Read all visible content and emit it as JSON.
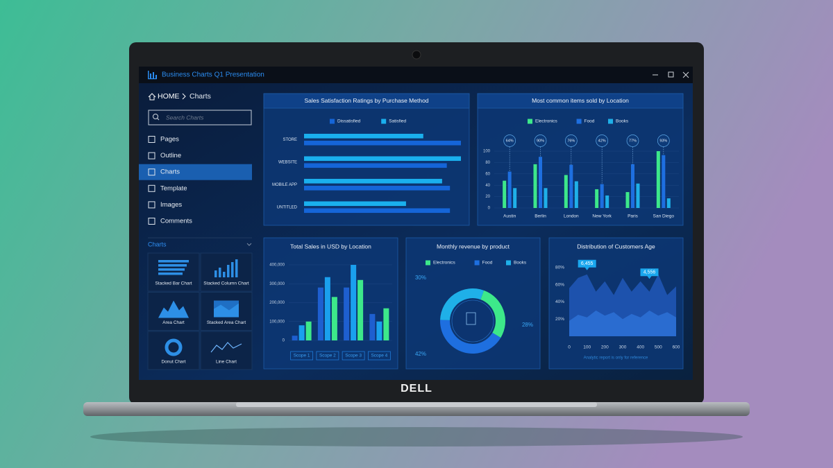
{
  "window": {
    "title": "Business Charts Q1 Presentation"
  },
  "breadcrumb": {
    "home": "HOME",
    "current": "Charts"
  },
  "search": {
    "placeholder": "Search Charts"
  },
  "nav": [
    {
      "label": "Pages"
    },
    {
      "label": "Outline"
    },
    {
      "label": "Charts",
      "active": true
    },
    {
      "label": "Template"
    },
    {
      "label": "Images"
    },
    {
      "label": "Comments"
    }
  ],
  "section": {
    "title": "Charts",
    "items": [
      "Stacked Bar Chart",
      "Stacked Column Chart",
      "Area Chart",
      "Stacked Area Chart",
      "Donut Chart",
      "Line Chart"
    ]
  },
  "brand": "DELL",
  "chart_data": [
    {
      "type": "hbar",
      "title": "Sales Satisfaction Ratings by Purchase Method",
      "categories": [
        "STORE",
        "WEBSITE",
        "MOBILE APP",
        "UNTITLED"
      ],
      "series": [
        {
          "name": "Dissatisfied",
          "color": "#1565d8",
          "values": [
            100,
            91,
            93,
            93
          ]
        },
        {
          "name": "Satisfied",
          "color": "#1ab0ee",
          "values": [
            76,
            100,
            88,
            65
          ]
        }
      ],
      "xlim": [
        0,
        100
      ]
    },
    {
      "type": "bar",
      "title": "Most common items sold by Location",
      "categories": [
        "Austin",
        "Berlin",
        "London",
        "New York",
        "Paris",
        "San Diego"
      ],
      "series": [
        {
          "name": "Electronics",
          "color": "#3de88a",
          "values": [
            48,
            77,
            58,
            33,
            28,
            100
          ]
        },
        {
          "name": "Food",
          "color": "#1e6fe0",
          "values": [
            64,
            90,
            76,
            42,
            77,
            93
          ],
          "value_labels": [
            "64%",
            "90%",
            "76%",
            "42%",
            "77%",
            "93%"
          ]
        },
        {
          "name": "Books",
          "color": "#1fb0e8",
          "values": [
            35,
            35,
            47,
            22,
            43,
            17
          ]
        }
      ],
      "ylim": [
        0,
        100
      ],
      "yticks": [
        0,
        20,
        40,
        60,
        80,
        100
      ],
      "grid": true
    },
    {
      "type": "bar",
      "title": "Total Sales in USD by Location",
      "categories": [
        "Scope 1",
        "Scope 2",
        "Scope 3",
        "Scope 4"
      ],
      "series": [
        {
          "color": "#1e5fd0",
          "values": [
            25000,
            280000,
            280000,
            140000
          ]
        },
        {
          "color": "#1aa0ee",
          "values": [
            80000,
            335000,
            400000,
            100000
          ]
        },
        {
          "color": "#3de88a",
          "values": [
            100000,
            230000,
            320000,
            170000
          ]
        }
      ],
      "ylim": [
        0,
        400000
      ],
      "yticks": [
        0,
        {
          "value": 100000,
          "label": "100,000"
        },
        {
          "value": 200000,
          "label": "200,000"
        },
        {
          "value": 300000,
          "label": "300,000"
        },
        {
          "value": 400000,
          "label": "400,000"
        }
      ],
      "grid": true
    },
    {
      "type": "donut",
      "title": "Monthly revenue by product",
      "categories": [
        "Electronics",
        "Food",
        "Books"
      ],
      "values": [
        28,
        42,
        30
      ],
      "value_labels": [
        "28%",
        "42%",
        "30%"
      ],
      "colors": [
        "#3de88a",
        "#1e6fe0",
        "#1fb0e8"
      ]
    },
    {
      "type": "area",
      "title": "Distribution of Customers Age",
      "x": [
        0,
        50,
        100,
        150,
        200,
        250,
        300,
        350,
        400,
        450,
        500,
        550,
        600
      ],
      "series": [
        {
          "color": "#1f55b4",
          "values": [
            56,
            68,
            72,
            52,
            64,
            48,
            68,
            52,
            64,
            52,
            72,
            48,
            58
          ]
        },
        {
          "color": "#2c6fd4",
          "values": [
            18,
            25,
            22,
            30,
            24,
            28,
            20,
            26,
            22,
            30,
            24,
            28,
            22
          ]
        }
      ],
      "xlim": [
        0,
        600
      ],
      "xticks": [
        0,
        100,
        200,
        300,
        400,
        500,
        600
      ],
      "ylim": [
        0,
        90
      ],
      "yticks": [
        {
          "value": 20,
          "label": "20%"
        },
        {
          "value": 40,
          "label": "40%"
        },
        {
          "value": 60,
          "label": "60%"
        },
        {
          "value": 80,
          "label": "80%"
        }
      ],
      "annotations": [
        {
          "text": "6,455",
          "x": 100,
          "y": 72
        },
        {
          "text": "4,556",
          "x": 450,
          "y": 62
        }
      ],
      "note": "Analytic report is only for reference"
    }
  ]
}
